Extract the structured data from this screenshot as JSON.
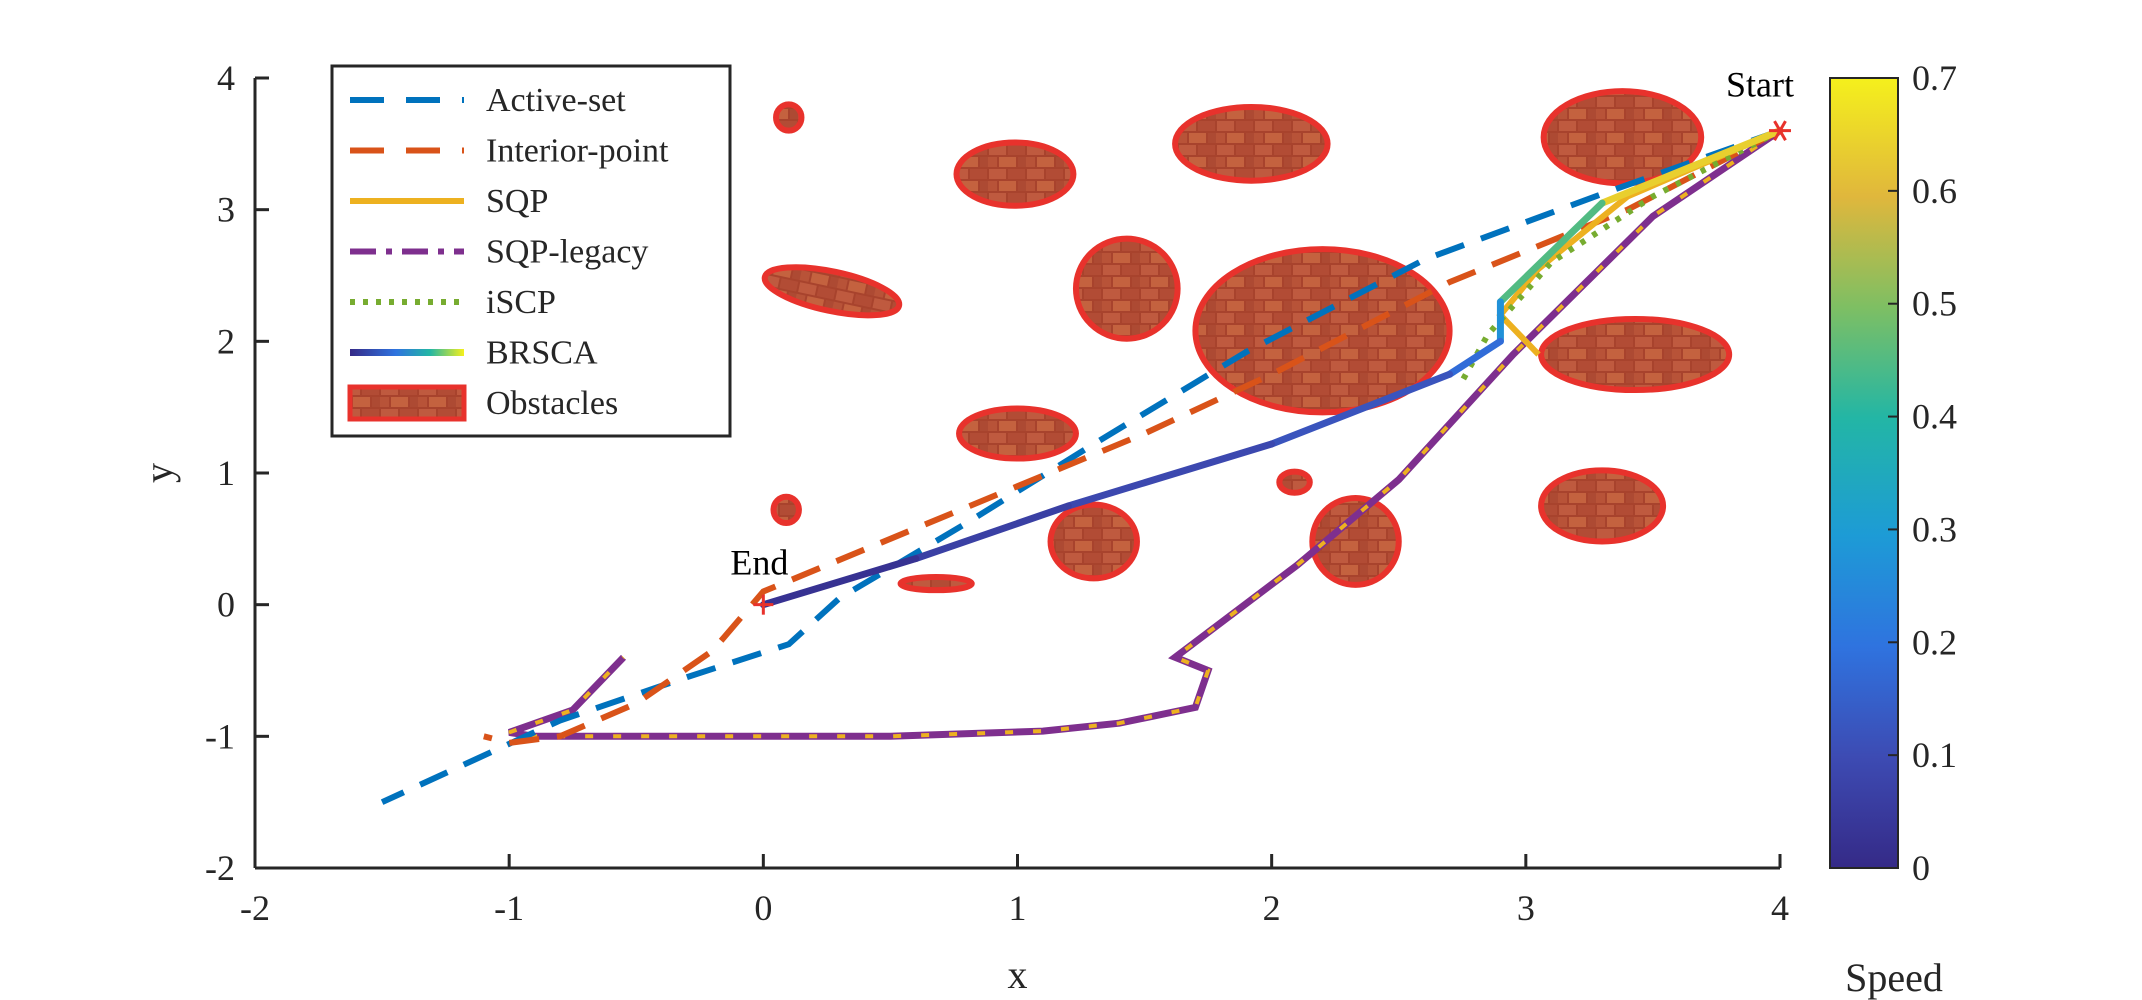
{
  "chart_data": {
    "type": "line",
    "title": "",
    "xlabel": "x",
    "ylabel": "y",
    "xlim": [
      -2,
      4
    ],
    "ylim": [
      -2,
      4
    ],
    "xticks": [
      -2,
      -1,
      0,
      1,
      2,
      3,
      4
    ],
    "yticks": [
      -2,
      -1,
      0,
      1,
      2,
      3,
      4
    ],
    "grid": false,
    "legend_position": "top-left",
    "colorbar": {
      "label": "Speed",
      "range": [
        0,
        0.7
      ],
      "ticks": [
        0,
        0.1,
        0.2,
        0.3,
        0.4,
        0.5,
        0.6,
        0.7
      ]
    },
    "annotations": [
      {
        "text": "Start",
        "x": 4.0,
        "y": 3.6,
        "marker": "*"
      },
      {
        "text": "End",
        "x": 0.0,
        "y": 0.0,
        "marker": "+"
      }
    ],
    "series": [
      {
        "name": "Active-set",
        "color": "#0072BD",
        "style": "dashed",
        "points": [
          [
            4.0,
            3.6
          ],
          [
            3.3,
            3.12
          ],
          [
            2.6,
            2.62
          ],
          [
            1.9,
            1.92
          ],
          [
            1.3,
            1.22
          ],
          [
            0.8,
            0.62
          ],
          [
            0.3,
            0.05
          ],
          [
            0.1,
            -0.3
          ],
          [
            -0.3,
            -0.55
          ],
          [
            -0.8,
            -0.88
          ],
          [
            -1.5,
            -1.5
          ]
        ]
      },
      {
        "name": "Interior-point",
        "color": "#D95319",
        "style": "dashed",
        "points": [
          [
            4.0,
            3.6
          ],
          [
            3.4,
            3.0
          ],
          [
            2.7,
            2.45
          ],
          [
            2.0,
            1.75
          ],
          [
            1.5,
            1.3
          ],
          [
            1.0,
            0.9
          ],
          [
            0.5,
            0.5
          ],
          [
            0.0,
            0.1
          ],
          [
            -0.2,
            -0.35
          ],
          [
            -0.5,
            -0.75
          ],
          [
            -0.8,
            -1.0
          ],
          [
            -1.0,
            -1.05
          ],
          [
            -1.1,
            -1.0
          ]
        ]
      },
      {
        "name": "SQP",
        "color": "#EDB120",
        "style": "solid",
        "points": [
          [
            4.0,
            3.6
          ],
          [
            3.4,
            3.1
          ],
          [
            3.05,
            2.55
          ],
          [
            2.9,
            2.2
          ],
          [
            3.05,
            1.9
          ]
        ]
      },
      {
        "name": "SQP-legacy",
        "color": "#7E2F8E",
        "style": "dashdot",
        "points": [
          [
            4.0,
            3.6
          ],
          [
            3.5,
            2.95
          ],
          [
            2.95,
            1.9
          ],
          [
            2.5,
            0.95
          ],
          [
            2.1,
            0.3
          ],
          [
            1.62,
            -0.4
          ],
          [
            1.75,
            -0.5
          ],
          [
            1.7,
            -0.78
          ],
          [
            1.4,
            -0.9
          ],
          [
            1.1,
            -0.96
          ],
          [
            0.5,
            -1.0
          ],
          [
            -0.5,
            -1.0
          ],
          [
            -0.9,
            -1.0
          ],
          [
            -1.0,
            -0.97
          ],
          [
            -0.75,
            -0.8
          ],
          [
            -0.55,
            -0.4
          ]
        ]
      },
      {
        "name": "iSCP",
        "color": "#77AC30",
        "style": "dotted",
        "points": [
          [
            4.0,
            3.6
          ],
          [
            3.5,
            3.1
          ],
          [
            3.1,
            2.6
          ],
          [
            2.85,
            2.05
          ],
          [
            2.75,
            1.7
          ]
        ]
      },
      {
        "name": "BRSCA",
        "color": "viridis",
        "style": "gradient",
        "points": [
          [
            4.0,
            3.6
          ],
          [
            3.3,
            3.05
          ],
          [
            2.9,
            2.3
          ],
          [
            2.9,
            2.0
          ],
          [
            2.7,
            1.75
          ],
          [
            2.0,
            1.22
          ],
          [
            1.2,
            0.75
          ],
          [
            0.6,
            0.35
          ],
          [
            0.0,
            0.0
          ]
        ],
        "speed": [
          0.7,
          0.58,
          0.32,
          0.22,
          0.14,
          0.1,
          0.08,
          0.05,
          0.0
        ]
      },
      {
        "name": "Obstacles",
        "color": "#E8322C",
        "style": "fill"
      }
    ],
    "obstacles": [
      {
        "cx": 3.38,
        "cy": 3.55,
        "rx": 0.31,
        "ry": 0.35
      },
      {
        "cx": 2.2,
        "cy": 2.08,
        "rx": 0.5,
        "ry": 0.62
      },
      {
        "cx": 1.92,
        "cy": 3.5,
        "rx": 0.3,
        "ry": 0.28
      },
      {
        "cx": 3.43,
        "cy": 1.9,
        "rx": 0.37,
        "ry": 0.27
      },
      {
        "cx": 1.43,
        "cy": 2.4,
        "rx": 0.2,
        "ry": 0.38
      },
      {
        "cx": 0.99,
        "cy": 3.27,
        "rx": 0.23,
        "ry": 0.24
      },
      {
        "cx": 0.27,
        "cy": 2.38,
        "rx": 0.27,
        "ry": 0.15,
        "rot": 12
      },
      {
        "cx": 0.0,
        "cy": 1.3,
        "rx": 0.23,
        "ry": 0.19,
        "shift": 1.0
      },
      {
        "cx": 1.3,
        "cy": 0.48,
        "rx": 0.17,
        "ry": 0.28
      },
      {
        "cx": 2.33,
        "cy": 0.48,
        "rx": 0.17,
        "ry": 0.33
      },
      {
        "cx": 3.3,
        "cy": 0.75,
        "rx": 0.24,
        "ry": 0.27
      },
      {
        "cx": 0.68,
        "cy": 0.16,
        "rx": 0.14,
        "ry": 0.05
      },
      {
        "cx": 0.1,
        "cy": 3.7,
        "rx": 0.05,
        "ry": 0.1
      },
      {
        "cx": 0.09,
        "cy": 0.72,
        "rx": 0.05,
        "ry": 0.1
      },
      {
        "cx": 2.09,
        "cy": 0.93,
        "rx": 0.06,
        "ry": 0.08
      }
    ]
  }
}
